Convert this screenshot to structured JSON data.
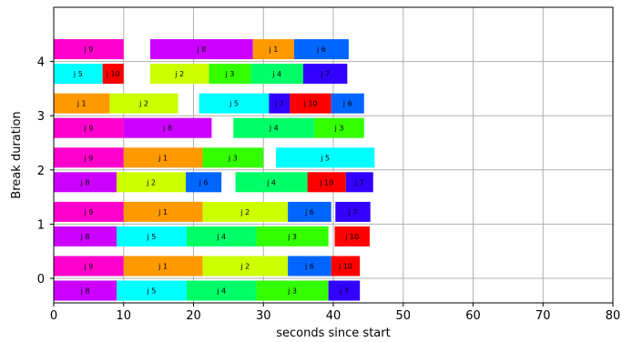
{
  "chart_data": {
    "type": "bar",
    "orientation": "horizontal-gantt",
    "xlabel": "seconds since start",
    "ylabel": "Break duration",
    "xlim": [
      0,
      80
    ],
    "ylim": [
      -0.5,
      5
    ],
    "grid": true,
    "x_ticks": [
      0,
      10,
      20,
      30,
      40,
      50,
      60,
      70,
      80
    ],
    "y_ticks": [
      0,
      1,
      2,
      3,
      4
    ],
    "job_colors": {
      "j 1": "#ff9900",
      "j 2": "#ccff00",
      "j 3": "#33ff00",
      "j 4": "#00ff66",
      "j 5": "#00ffff",
      "j 6": "#0066ff",
      "j 7": "#3300ff",
      "j 8": "#cc00ff",
      "j 9": "#ff00cc",
      "j 10": "#ff0000"
    },
    "tasks": [
      {
        "row": 0,
        "lane": "bottom",
        "label": "j 8",
        "start": 0,
        "end": 9
      },
      {
        "row": 0,
        "lane": "bottom",
        "label": "j 5",
        "start": 9,
        "end": 19
      },
      {
        "row": 0,
        "lane": "bottom",
        "label": "j 4",
        "start": 19,
        "end": 29
      },
      {
        "row": 0,
        "lane": "bottom",
        "label": "j 3",
        "start": 29,
        "end": 39.3
      },
      {
        "row": 0,
        "lane": "bottom",
        "label": "j 7",
        "start": 39.3,
        "end": 43.8
      },
      {
        "row": 0,
        "lane": "top",
        "label": "j 9",
        "start": 0,
        "end": 10
      },
      {
        "row": 0,
        "lane": "top",
        "label": "j 1",
        "start": 10,
        "end": 21.3
      },
      {
        "row": 0,
        "lane": "top",
        "label": "j 2",
        "start": 21.3,
        "end": 33.5
      },
      {
        "row": 0,
        "lane": "top",
        "label": "j 6",
        "start": 33.5,
        "end": 39.7
      },
      {
        "row": 0,
        "lane": "top",
        "label": "j 10",
        "start": 39.7,
        "end": 43.8
      },
      {
        "row": 1,
        "lane": "bottom",
        "label": "j 8",
        "start": 0,
        "end": 9
      },
      {
        "row": 1,
        "lane": "bottom",
        "label": "j 5",
        "start": 9,
        "end": 19
      },
      {
        "row": 1,
        "lane": "bottom",
        "label": "j 4",
        "start": 19,
        "end": 29
      },
      {
        "row": 1,
        "lane": "bottom",
        "label": "j 3",
        "start": 29,
        "end": 39.3
      },
      {
        "row": 1,
        "lane": "bottom",
        "label": "j 10",
        "start": 40.2,
        "end": 45.2
      },
      {
        "row": 1,
        "lane": "top",
        "label": "j 9",
        "start": 0,
        "end": 10
      },
      {
        "row": 1,
        "lane": "top",
        "label": "j 1",
        "start": 10,
        "end": 21.3
      },
      {
        "row": 1,
        "lane": "top",
        "label": "j 2",
        "start": 21.3,
        "end": 33.5
      },
      {
        "row": 1,
        "lane": "top",
        "label": "j 6",
        "start": 33.5,
        "end": 39.7
      },
      {
        "row": 1,
        "lane": "top",
        "label": "j 7",
        "start": 40.3,
        "end": 45.3
      },
      {
        "row": 2,
        "lane": "bottom",
        "label": "j 8",
        "start": 0,
        "end": 9
      },
      {
        "row": 2,
        "lane": "bottom",
        "label": "j 2",
        "start": 9,
        "end": 18.9
      },
      {
        "row": 2,
        "lane": "bottom",
        "label": "j 6",
        "start": 18.9,
        "end": 24
      },
      {
        "row": 2,
        "lane": "bottom",
        "label": "j 4",
        "start": 26,
        "end": 36.3
      },
      {
        "row": 2,
        "lane": "bottom",
        "label": "j 10",
        "start": 36.3,
        "end": 41.8
      },
      {
        "row": 2,
        "lane": "bottom",
        "label": "j 7",
        "start": 41.8,
        "end": 45.7
      },
      {
        "row": 2,
        "lane": "top",
        "label": "j 9",
        "start": 0,
        "end": 10
      },
      {
        "row": 2,
        "lane": "top",
        "label": "j 1",
        "start": 10,
        "end": 21.3
      },
      {
        "row": 2,
        "lane": "top",
        "label": "j 3",
        "start": 21.3,
        "end": 30
      },
      {
        "row": 2,
        "lane": "top",
        "label": "j 5",
        "start": 31.8,
        "end": 45.9
      },
      {
        "row": 3,
        "lane": "bottom",
        "label": "j 9",
        "start": 0,
        "end": 10
      },
      {
        "row": 3,
        "lane": "bottom",
        "label": "j 8",
        "start": 10,
        "end": 22.6
      },
      {
        "row": 3,
        "lane": "bottom",
        "label": "j 4",
        "start": 25.7,
        "end": 37.3
      },
      {
        "row": 3,
        "lane": "bottom",
        "label": "j 3",
        "start": 37.3,
        "end": 44.4
      },
      {
        "row": 3,
        "lane": "top",
        "label": "j 1",
        "start": 0,
        "end": 8
      },
      {
        "row": 3,
        "lane": "top",
        "label": "j 2",
        "start": 8,
        "end": 17.8
      },
      {
        "row": 3,
        "lane": "top",
        "label": "j 5",
        "start": 20.8,
        "end": 30.8
      },
      {
        "row": 3,
        "lane": "top",
        "label": "j 7",
        "start": 30.8,
        "end": 33.8
      },
      {
        "row": 3,
        "lane": "top",
        "label": "j 10",
        "start": 33.8,
        "end": 39.7
      },
      {
        "row": 3,
        "lane": "top",
        "label": "j 6",
        "start": 39.7,
        "end": 44.4
      },
      {
        "row": 4,
        "lane": "bottom",
        "label": "j 5",
        "start": 0,
        "end": 7
      },
      {
        "row": 4,
        "lane": "bottom",
        "label": "j 10",
        "start": 7,
        "end": 10
      },
      {
        "row": 4,
        "lane": "bottom",
        "label": "j 2",
        "start": 13.8,
        "end": 22.2
      },
      {
        "row": 4,
        "lane": "bottom",
        "label": "j 3",
        "start": 22.2,
        "end": 28.2
      },
      {
        "row": 4,
        "lane": "bottom",
        "label": "j 4",
        "start": 28.2,
        "end": 35.7
      },
      {
        "row": 4,
        "lane": "bottom",
        "label": "j 7",
        "start": 35.7,
        "end": 42
      },
      {
        "row": 4,
        "lane": "top",
        "label": "j 9",
        "start": 0,
        "end": 10
      },
      {
        "row": 4,
        "lane": "top",
        "label": "j 8",
        "start": 13.8,
        "end": 28.5
      },
      {
        "row": 4,
        "lane": "top",
        "label": "j 1",
        "start": 28.5,
        "end": 34.4
      },
      {
        "row": 4,
        "lane": "top",
        "label": "j 6",
        "start": 34.4,
        "end": 42.2
      }
    ]
  }
}
